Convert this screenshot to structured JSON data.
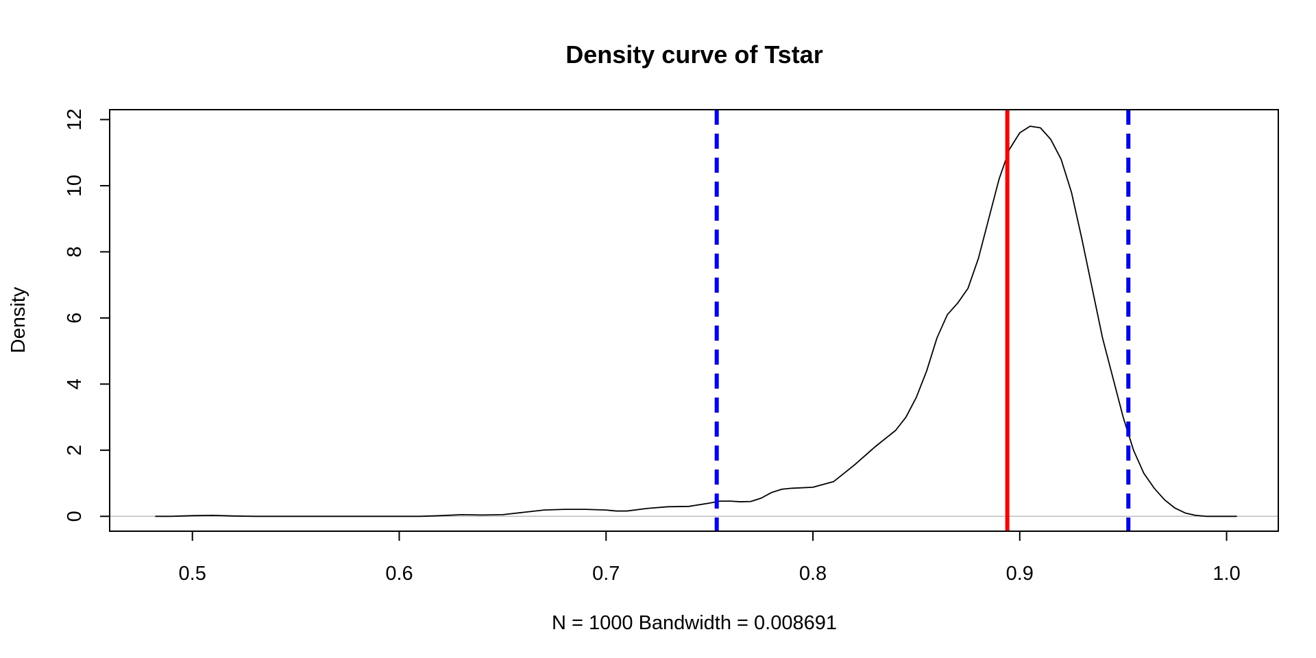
{
  "chart_data": {
    "type": "line",
    "title": "Density curve of Tstar",
    "xlabel": "N = 1000   Bandwidth = 0.008691",
    "ylabel": "Density",
    "xlim": [
      0.46,
      1.025
    ],
    "ylim": [
      -0.45,
      12.3
    ],
    "x_ticks": [
      0.5,
      0.6,
      0.7,
      0.8,
      0.9,
      1.0
    ],
    "x_tick_labels": [
      "0.5",
      "0.6",
      "0.7",
      "0.8",
      "0.9",
      "1.0"
    ],
    "y_ticks": [
      0,
      2,
      4,
      6,
      8,
      10,
      12
    ],
    "y_tick_labels": [
      "0",
      "2",
      "4",
      "6",
      "8",
      "10",
      "12"
    ],
    "grid": false,
    "legend": "none",
    "baseline": 0,
    "series": [
      {
        "x": [
          0.482,
          0.49,
          0.5,
          0.51,
          0.52,
          0.53,
          0.55,
          0.58,
          0.6,
          0.61,
          0.62,
          0.63,
          0.64,
          0.65,
          0.66,
          0.67,
          0.68,
          0.69,
          0.7,
          0.705,
          0.71,
          0.72,
          0.73,
          0.74,
          0.75,
          0.755,
          0.76,
          0.765,
          0.77,
          0.775,
          0.78,
          0.785,
          0.79,
          0.8,
          0.81,
          0.82,
          0.83,
          0.84,
          0.845,
          0.85,
          0.855,
          0.86,
          0.865,
          0.87,
          0.875,
          0.88,
          0.885,
          0.89,
          0.895,
          0.9,
          0.905,
          0.91,
          0.915,
          0.92,
          0.925,
          0.93,
          0.935,
          0.94,
          0.945,
          0.95,
          0.955,
          0.96,
          0.965,
          0.97,
          0.975,
          0.98,
          0.985,
          0.99,
          0.995,
          1.005
        ],
        "y": [
          0.0,
          0.0,
          0.02,
          0.03,
          0.01,
          0.0,
          0.0,
          0.0,
          0.0,
          0.0,
          0.02,
          0.05,
          0.04,
          0.05,
          0.12,
          0.19,
          0.21,
          0.21,
          0.19,
          0.16,
          0.16,
          0.24,
          0.29,
          0.3,
          0.4,
          0.46,
          0.46,
          0.44,
          0.45,
          0.55,
          0.72,
          0.82,
          0.85,
          0.88,
          1.05,
          1.55,
          2.1,
          2.6,
          3.0,
          3.6,
          4.4,
          5.4,
          6.1,
          6.45,
          6.9,
          7.8,
          9.0,
          10.2,
          11.1,
          11.6,
          11.8,
          11.75,
          11.4,
          10.8,
          9.8,
          8.4,
          6.9,
          5.4,
          4.2,
          3.0,
          2.0,
          1.3,
          0.85,
          0.5,
          0.25,
          0.1,
          0.03,
          0.0,
          0.0,
          0.0
        ],
        "color": "#000000"
      }
    ],
    "vlines": [
      {
        "x": 0.7535,
        "color": "#0000FF",
        "style": "dashed"
      },
      {
        "x": 0.894,
        "color": "#FF0000",
        "style": "solid"
      },
      {
        "x": 0.9525,
        "color": "#0000FF",
        "style": "dashed"
      }
    ]
  }
}
